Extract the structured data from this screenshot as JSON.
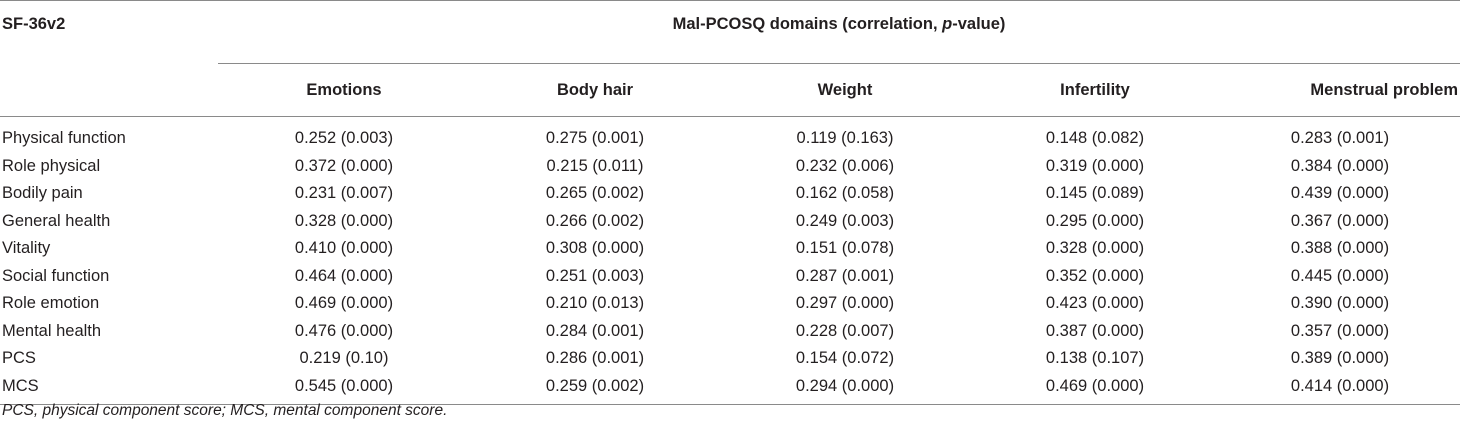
{
  "table": {
    "stub_header": "SF-36v2",
    "group_header_prefix": "Mal-PCOSQ domains (correlation, ",
    "group_header_italic": "p",
    "group_header_suffix": "-value)",
    "columns": [
      "Emotions",
      "Body hair",
      "Weight",
      "Infertility",
      "Menstrual problem"
    ],
    "rows": [
      {
        "label": "Physical function",
        "cells": [
          "0.252 (0.003)",
          "0.275 (0.001)",
          "0.119 (0.163)",
          "0.148 (0.082)",
          "0.283 (0.001)"
        ]
      },
      {
        "label": "Role physical",
        "cells": [
          "0.372 (0.000)",
          "0.215 (0.011)",
          "0.232 (0.006)",
          "0.319 (0.000)",
          "0.384 (0.000)"
        ]
      },
      {
        "label": "Bodily pain",
        "cells": [
          "0.231 (0.007)",
          "0.265 (0.002)",
          "0.162 (0.058)",
          "0.145 (0.089)",
          "0.439 (0.000)"
        ]
      },
      {
        "label": "General health",
        "cells": [
          "0.328 (0.000)",
          "0.266 (0.002)",
          "0.249 (0.003)",
          "0.295 (0.000)",
          "0.367 (0.000)"
        ]
      },
      {
        "label": "Vitality",
        "cells": [
          "0.410 (0.000)",
          "0.308 (0.000)",
          "0.151 (0.078)",
          "0.328 (0.000)",
          "0.388 (0.000)"
        ]
      },
      {
        "label": "Social function",
        "cells": [
          "0.464 (0.000)",
          "0.251 (0.003)",
          "0.287 (0.001)",
          "0.352 (0.000)",
          "0.445 (0.000)"
        ]
      },
      {
        "label": "Role emotion",
        "cells": [
          "0.469 (0.000)",
          "0.210 (0.013)",
          "0.297 (0.000)",
          "0.423 (0.000)",
          "0.390 (0.000)"
        ]
      },
      {
        "label": "Mental health",
        "cells": [
          "0.476 (0.000)",
          "0.284 (0.001)",
          "0.228 (0.007)",
          "0.387 (0.000)",
          "0.357 (0.000)"
        ]
      },
      {
        "label": "PCS",
        "cells": [
          "0.219 (0.10)",
          "0.286 (0.001)",
          "0.154 (0.072)",
          "0.138 (0.107)",
          "0.389 (0.000)"
        ]
      },
      {
        "label": "MCS",
        "cells": [
          "0.545 (0.000)",
          "0.259 (0.002)",
          "0.294 (0.000)",
          "0.469 (0.000)",
          "0.414 (0.000)"
        ]
      }
    ]
  },
  "footnote": "PCS, physical component score; MCS, mental component score."
}
